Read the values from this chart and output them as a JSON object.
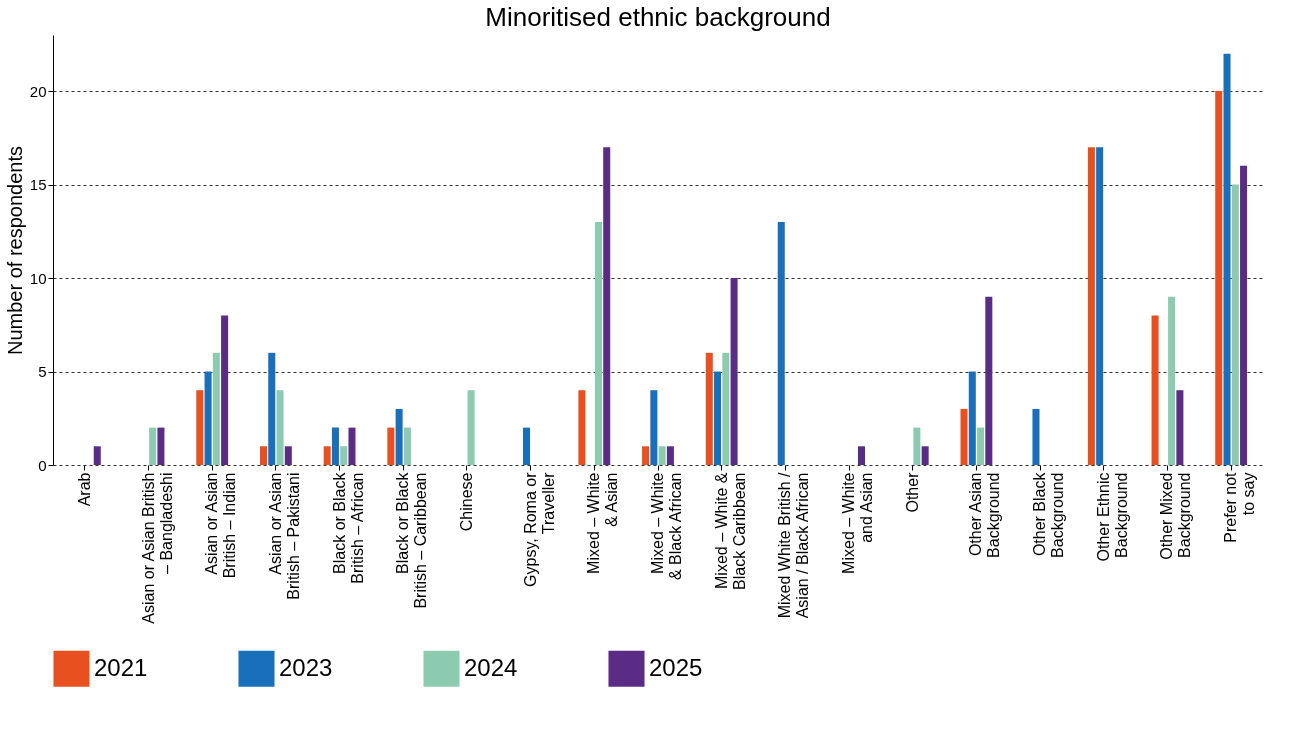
{
  "chart_data": {
    "type": "bar",
    "title": "Minoritised ethnic background",
    "ylabel": "Number of respondents",
    "categories": [
      "Arab",
      "Asian or Asian British\n– Bangladeshi",
      "Asian or Asian\nBritish – Indian",
      "Asian or Asian\nBritish – Pakistani",
      "Black or Black\nBritish – African",
      "Black or Black\nBritish – Caribbean",
      "Chinese",
      "Gypsy, Roma or\nTraveller",
      "Mixed – White\n& Asian",
      "Mixed – White\n& Black African",
      "Mixed – White &\nBlack Caribbean",
      "Mixed White British /\nAsian / Black African",
      "Mixed – White\nand Asian",
      "Other",
      "Other Asian\nBackground",
      "Other Black\nBackground",
      "Other Ethnic\nBackground",
      "Other Mixed\nBackground",
      "Prefer not\nto say"
    ],
    "series": [
      {
        "name": "2021",
        "color": "#e8501f",
        "values": [
          null,
          null,
          4,
          1,
          1,
          2,
          null,
          null,
          4,
          1,
          6,
          null,
          null,
          null,
          3,
          null,
          17,
          8,
          20
        ]
      },
      {
        "name": "2023",
        "color": "#1a6fba",
        "values": [
          null,
          null,
          5,
          6,
          2,
          3,
          null,
          2,
          null,
          4,
          5,
          13,
          null,
          null,
          5,
          3,
          17,
          null,
          22
        ]
      },
      {
        "name": "2024",
        "color": "#8ccbb0",
        "values": [
          null,
          2,
          6,
          4,
          1,
          2,
          4,
          null,
          13,
          1,
          6,
          null,
          null,
          2,
          2,
          null,
          null,
          9,
          15
        ]
      },
      {
        "name": "2025",
        "color": "#5b2c86",
        "values": [
          1,
          2,
          8,
          1,
          2,
          null,
          null,
          null,
          17,
          1,
          10,
          null,
          1,
          1,
          9,
          null,
          null,
          4,
          16
        ]
      }
    ],
    "ylim": [
      0,
      23
    ],
    "yticks": [
      0,
      5,
      10,
      15,
      20
    ],
    "grid": "y",
    "legend": "bottom"
  }
}
